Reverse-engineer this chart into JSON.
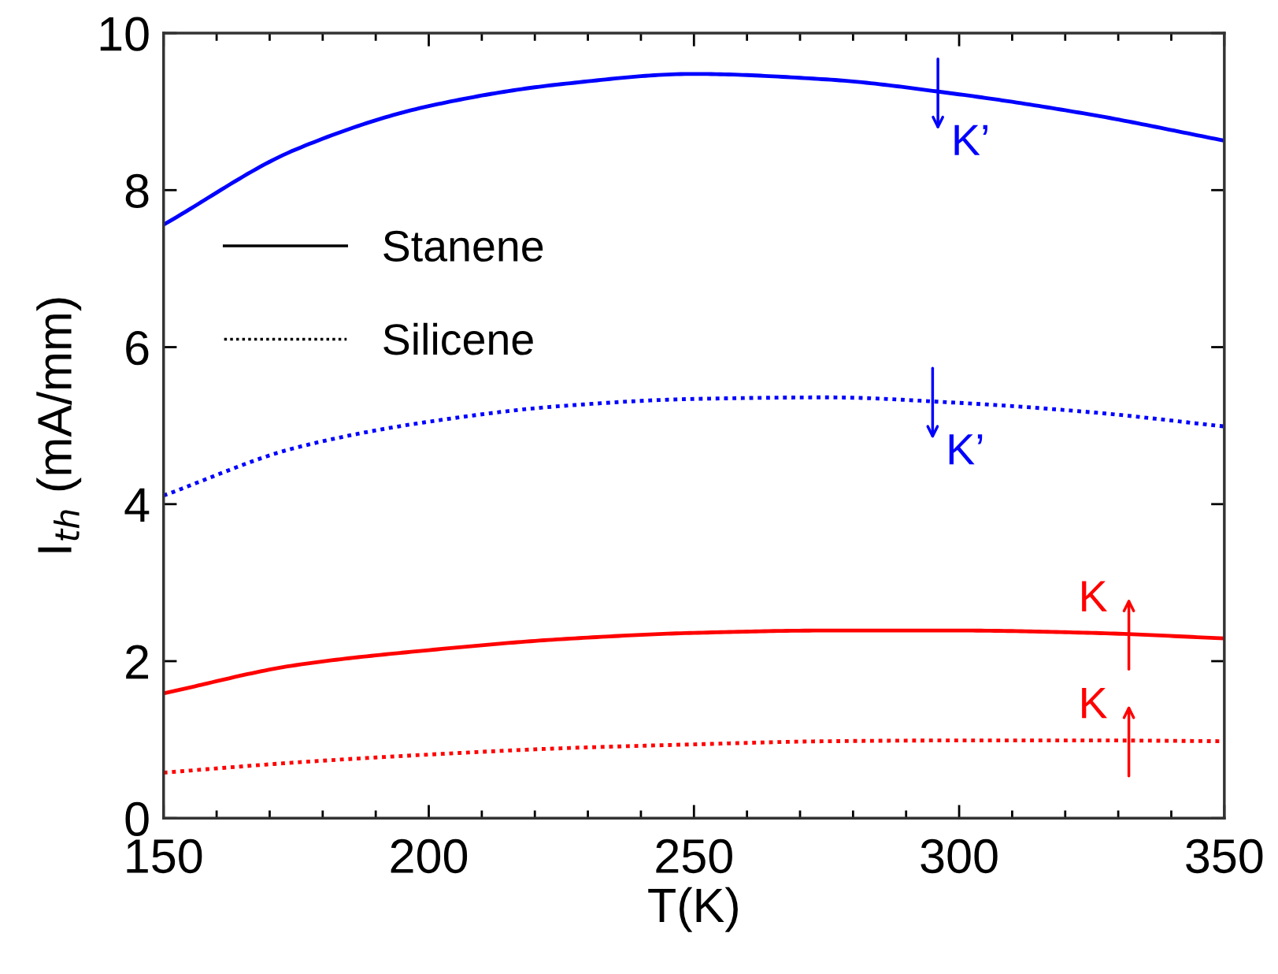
{
  "chart_data": {
    "type": "line",
    "xlabel": "T(K)",
    "ylabel": "I$_{th}$ (mA/mm)",
    "x": [
      150,
      175,
      200,
      225,
      250,
      275,
      300,
      325,
      350
    ],
    "series": [
      {
        "name": "Stanene",
        "color": "#0000ff",
        "line_style": "solid",
        "values": [
          7.56,
          8.52,
          9.07,
          9.35,
          9.48,
          9.41,
          9.22,
          8.96,
          8.63
        ]
      },
      {
        "name": "Silicene",
        "color": "#0000ff",
        "line_style": "dotted",
        "values": [
          4.11,
          4.72,
          5.05,
          5.25,
          5.34,
          5.36,
          5.29,
          5.17,
          4.99
        ]
      },
      {
        "color": "#ff0000",
        "line_style": "solid",
        "values": [
          1.59,
          1.95,
          2.14,
          2.28,
          2.36,
          2.39,
          2.39,
          2.36,
          2.29
        ]
      },
      {
        "color": "#ff0000",
        "line_style": "dotted",
        "values": [
          0.58,
          0.71,
          0.81,
          0.89,
          0.94,
          0.98,
          0.99,
          0.99,
          0.98
        ]
      }
    ],
    "annotations": [
      {
        "text": "K’",
        "x": 296,
        "y": 9.22
      },
      {
        "text": "K’",
        "x": 295,
        "y": 5.28
      },
      {
        "text": "K",
        "x": 332,
        "y": 2.35
      },
      {
        "text": "K",
        "x": 332,
        "y": 0.99
      }
    ],
    "xlim": [
      150,
      350
    ],
    "ylim": [
      0,
      10
    ],
    "xticks": [
      150,
      200,
      250,
      300,
      350
    ],
    "yticks": [
      0,
      2,
      4,
      6,
      8,
      10
    ],
    "grid": false,
    "legend": "top left",
    "marker": "none"
  }
}
